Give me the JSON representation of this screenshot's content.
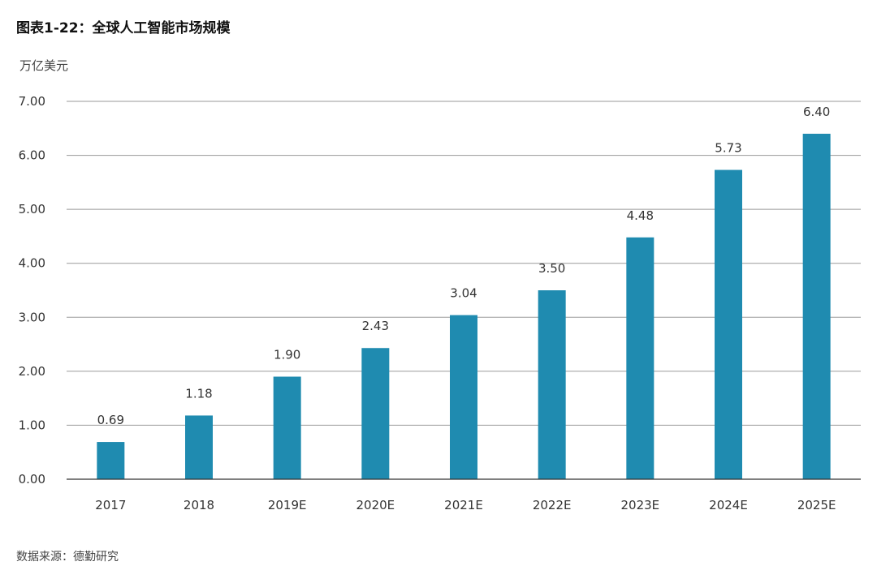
{
  "chart_data": {
    "type": "bar",
    "title": "图表1-22：全球人工智能市场规模",
    "ylabel": "万亿美元",
    "xlabel": "",
    "categories": [
      "2017",
      "2018",
      "2019E",
      "2020E",
      "2021E",
      "2022E",
      "2023E",
      "2024E",
      "2025E"
    ],
    "values": [
      0.69,
      1.18,
      1.9,
      2.43,
      3.04,
      3.5,
      4.48,
      5.73,
      6.4
    ],
    "value_labels": [
      "0.69",
      "1.18",
      "1.90",
      "2.43",
      "3.04",
      "3.50",
      "4.48",
      "5.73",
      "6.40"
    ],
    "ylim": [
      0,
      7
    ],
    "yticks": [
      0,
      1,
      2,
      3,
      4,
      5,
      6,
      7
    ],
    "ytick_labels": [
      "0.00",
      "1.00",
      "2.00",
      "3.00",
      "4.00",
      "5.00",
      "6.00",
      "7.00"
    ],
    "grid": true,
    "bar_color": "#1f8bb0",
    "source": "数据来源：德勤研究"
  }
}
